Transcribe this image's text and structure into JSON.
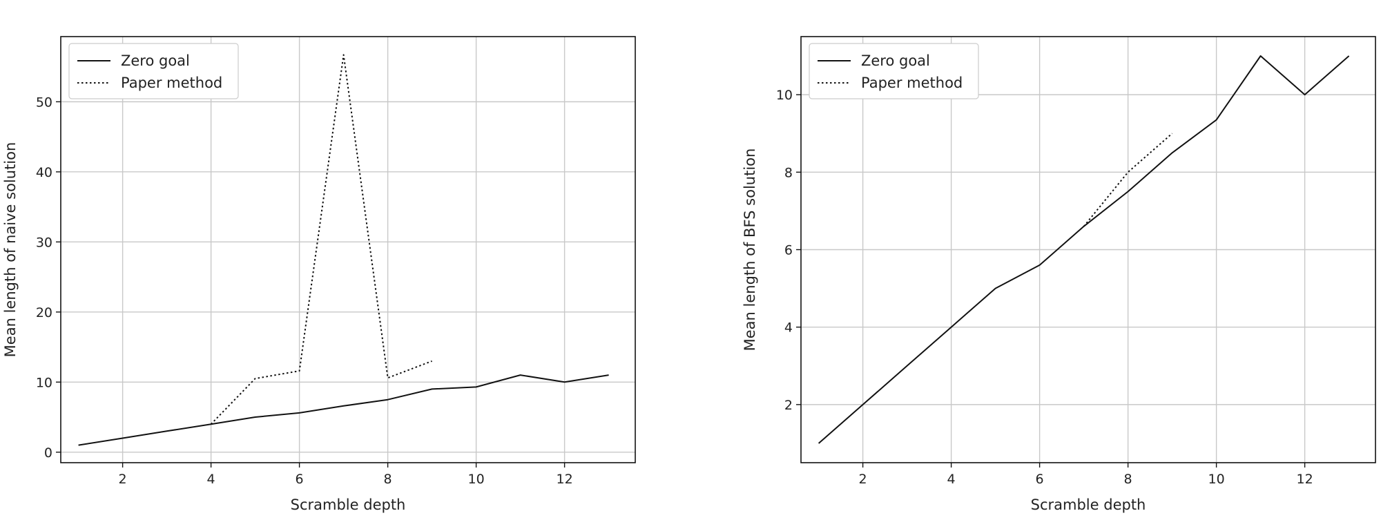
{
  "chart_data": [
    {
      "type": "line",
      "title": "",
      "xlabel": "Scramble depth",
      "ylabel": "Mean length of naive solution",
      "xlim": [
        0.6,
        13.6
      ],
      "ylim": [
        -1.5,
        59.3
      ],
      "xticks": [
        2,
        4,
        6,
        8,
        10,
        12
      ],
      "yticks": [
        0,
        10,
        20,
        30,
        40,
        50
      ],
      "grid": true,
      "legend": "top-left",
      "series": [
        {
          "name": "Zero goal",
          "style": "solid",
          "color": "#111111",
          "x": [
            1,
            2,
            3,
            4,
            5,
            6,
            7,
            8,
            9,
            10,
            11,
            12,
            13
          ],
          "y": [
            1,
            2,
            3,
            4,
            5,
            5.6,
            6.6,
            7.5,
            9,
            9.3,
            11,
            10,
            11
          ]
        },
        {
          "name": "Paper method",
          "style": "dotted",
          "color": "#111111",
          "x": [
            4,
            5,
            6,
            7,
            8,
            9
          ],
          "y": [
            4,
            10.5,
            11.6,
            56.7,
            10.6,
            13
          ]
        }
      ]
    },
    {
      "type": "line",
      "title": "",
      "xlabel": "Scramble depth",
      "ylabel": "Mean length of BFS solution",
      "xlim": [
        0.6,
        13.6
      ],
      "ylim": [
        0.5,
        11.5
      ],
      "xticks": [
        2,
        4,
        6,
        8,
        10,
        12
      ],
      "yticks": [
        2,
        4,
        6,
        8,
        10
      ],
      "grid": true,
      "legend": "top-left",
      "series": [
        {
          "name": "Zero goal",
          "style": "solid",
          "color": "#111111",
          "x": [
            1,
            2,
            3,
            4,
            5,
            6,
            7,
            8,
            9,
            10,
            11,
            12,
            13
          ],
          "y": [
            1,
            2,
            3,
            4,
            5,
            5.6,
            6.6,
            7.5,
            8.5,
            9.35,
            11,
            10,
            11
          ]
        },
        {
          "name": "Paper method",
          "style": "dotted",
          "color": "#111111",
          "x": [
            7,
            8,
            9
          ],
          "y": [
            6.6,
            8,
            9
          ]
        }
      ]
    }
  ]
}
